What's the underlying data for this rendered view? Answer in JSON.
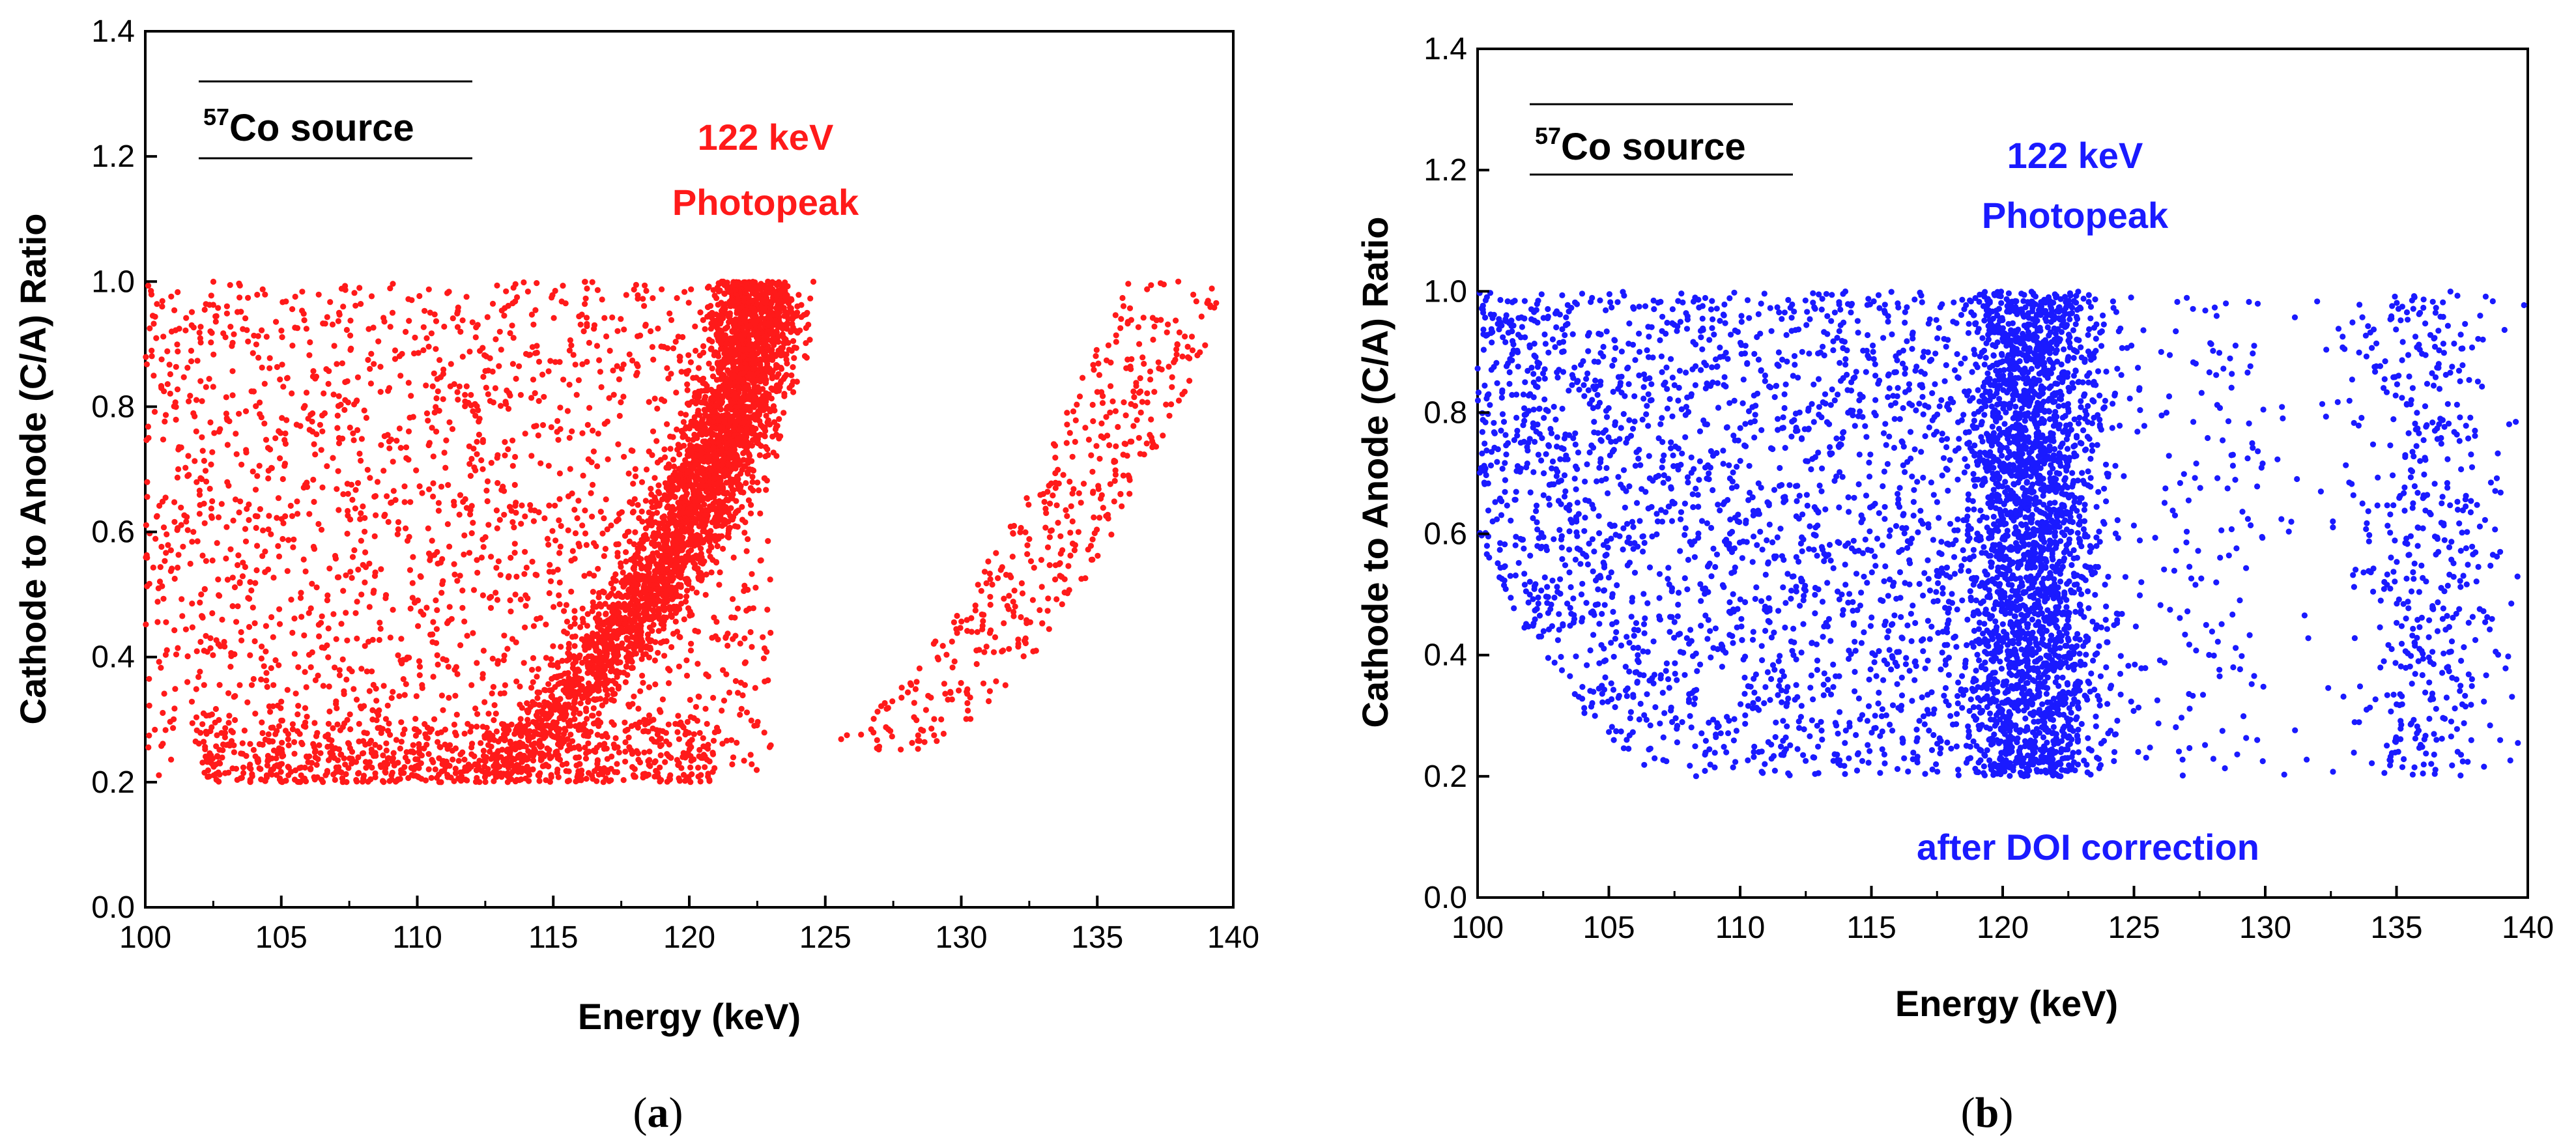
{
  "chart_data": [
    {
      "type": "scatter",
      "panel_label": "(a)",
      "panel_letter": "a",
      "xlabel": "Energy (keV)",
      "ylabel": "Cathode to Anode (C/A) Ratio",
      "xlim": [
        100,
        140
      ],
      "ylim": [
        0,
        1.4
      ],
      "xticks": [
        "100",
        "105",
        "110",
        "115",
        "120",
        "125",
        "130",
        "135",
        "140"
      ],
      "yticks": [
        "0.0",
        "0.2",
        "0.4",
        "0.6",
        "0.8",
        "1.0",
        "1.2",
        "1.4"
      ],
      "source_label": "Co source",
      "source_isotope": "57",
      "annotation": [
        "122 keV",
        "Photopeak"
      ],
      "point_color": "#ff1a1a",
      "series": [
        {
          "name": "photopeak band",
          "model": "photopeak_curve",
          "peak_energy": 122.5,
          "count": 3200
        },
        {
          "name": "continuum",
          "model": "uniform",
          "x_range": [
            100,
            123
          ],
          "y_range": [
            0.2,
            1.0
          ],
          "count": 2000
        },
        {
          "name": "low C/A cluster",
          "model": "low_band",
          "x_range": [
            102,
            121
          ],
          "y_range": [
            0.2,
            0.3
          ],
          "count": 600
        },
        {
          "name": "escape band",
          "model": "right_curve",
          "x_range": [
            124,
            140
          ],
          "y_range": [
            0.25,
            1.0
          ],
          "count": 430
        }
      ]
    },
    {
      "type": "scatter",
      "panel_label": "(b)",
      "panel_letter": "b",
      "xlabel": "Energy (keV)",
      "ylabel": "Cathode to Anode (C/A) Ratio",
      "xlim": [
        100,
        140
      ],
      "ylim": [
        0,
        1.4
      ],
      "xticks": [
        "100",
        "105",
        "110",
        "115",
        "120",
        "125",
        "130",
        "135",
        "140"
      ],
      "yticks": [
        "0.0",
        "0.2",
        "0.4",
        "0.6",
        "0.8",
        "1.0",
        "1.2",
        "1.4"
      ],
      "source_label": "Co source",
      "source_isotope": "57",
      "annotation": [
        "122 keV",
        "Photopeak"
      ],
      "correction_note": "after DOI correction",
      "point_color": "#1a1aff",
      "series": [
        {
          "name": "photopeak band",
          "model": "vertical_band",
          "x_range": [
            118,
            124
          ],
          "y_range": [
            0.2,
            1.0
          ],
          "count": 2700
        },
        {
          "name": "continuum",
          "model": "uniform_rounded",
          "x_range": [
            100,
            118
          ],
          "y_range": [
            0.2,
            1.0
          ],
          "count": 2000
        },
        {
          "name": "tail",
          "model": "uniform",
          "x_range": [
            124,
            130
          ],
          "y_range": [
            0.2,
            1.0
          ],
          "count": 150
        },
        {
          "name": "escape band",
          "model": "vertical_band",
          "x_range": [
            133,
            139
          ],
          "y_range": [
            0.2,
            1.0
          ],
          "count": 420
        },
        {
          "name": "sparse",
          "model": "uniform",
          "x_range": [
            126,
            140
          ],
          "y_range": [
            0.2,
            1.0
          ],
          "count": 120
        }
      ]
    }
  ]
}
